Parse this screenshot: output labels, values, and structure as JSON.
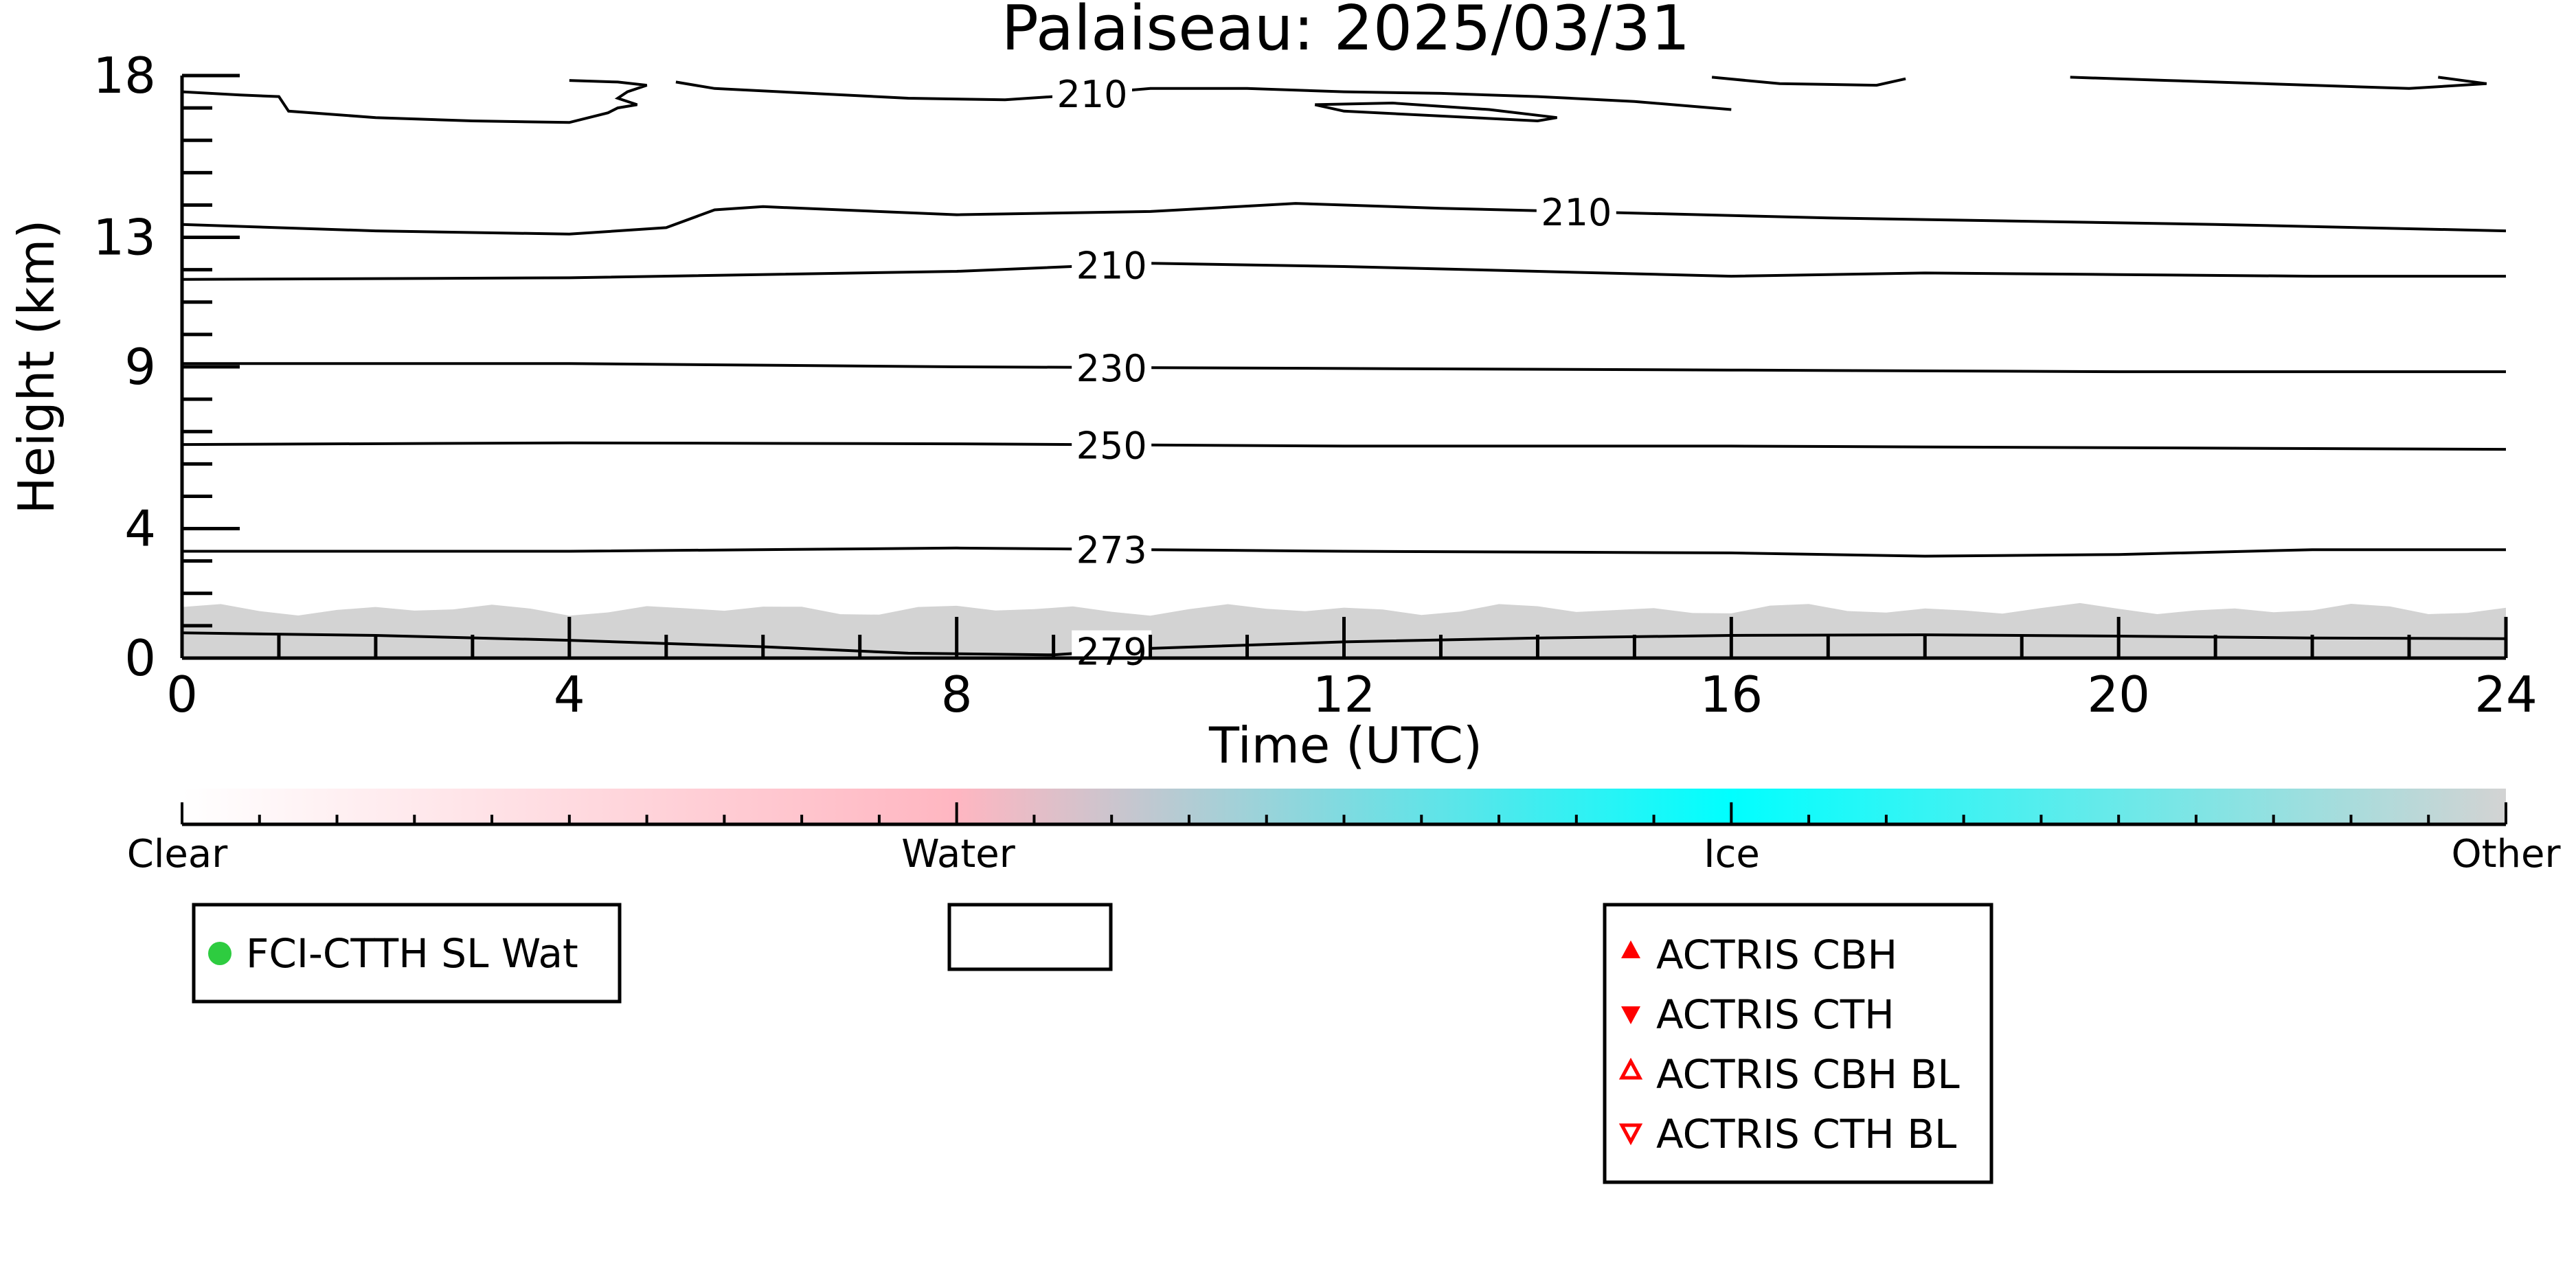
{
  "chart_data": {
    "type": "heatmap",
    "title": "Palaiseau: 2025/03/31",
    "xlabel": "Time (UTC)",
    "ylabel": "Height (km)",
    "xlim": [
      0,
      24
    ],
    "ylim": [
      0,
      18
    ],
    "x_ticks": [
      0,
      4,
      8,
      12,
      16,
      20,
      24
    ],
    "x_tick_labels": [
      "0",
      "4",
      "8",
      "12",
      "16",
      "20",
      "24"
    ],
    "y_ticks": [
      0,
      4,
      9,
      13,
      18
    ],
    "y_tick_labels": [
      "0",
      "4",
      "9",
      "13",
      "18"
    ],
    "background_class": {
      "name": "Other",
      "from_x": 0,
      "to_x": 24,
      "top_km_approx": 1.5
    },
    "isotherms": [
      {
        "label": "279",
        "label_x": 9.6,
        "points": [
          [
            0,
            0.78
          ],
          [
            2,
            0.7
          ],
          [
            4,
            0.55
          ],
          [
            6,
            0.35
          ],
          [
            7.5,
            0.15
          ],
          [
            9,
            0.1
          ],
          [
            10,
            0.3
          ],
          [
            12,
            0.5
          ],
          [
            14,
            0.62
          ],
          [
            16,
            0.7
          ],
          [
            18,
            0.72
          ],
          [
            20,
            0.68
          ],
          [
            22,
            0.62
          ],
          [
            24,
            0.6
          ]
        ]
      },
      {
        "label": "273",
        "label_x": 9.6,
        "points": [
          [
            0,
            3.3
          ],
          [
            4,
            3.3
          ],
          [
            8,
            3.4
          ],
          [
            10,
            3.35
          ],
          [
            12,
            3.3
          ],
          [
            16,
            3.25
          ],
          [
            18,
            3.15
          ],
          [
            20,
            3.2
          ],
          [
            22,
            3.35
          ],
          [
            24,
            3.35
          ]
        ]
      },
      {
        "label": "250",
        "label_x": 9.6,
        "points": [
          [
            0,
            6.6
          ],
          [
            4,
            6.65
          ],
          [
            8,
            6.62
          ],
          [
            12,
            6.55
          ],
          [
            16,
            6.55
          ],
          [
            20,
            6.5
          ],
          [
            24,
            6.45
          ]
        ]
      },
      {
        "label": "230",
        "label_x": 9.6,
        "points": [
          [
            0,
            9.1
          ],
          [
            4,
            9.1
          ],
          [
            8,
            9.0
          ],
          [
            12,
            8.95
          ],
          [
            16,
            8.9
          ],
          [
            20,
            8.85
          ],
          [
            24,
            8.85
          ]
        ]
      },
      {
        "label": "210",
        "label_x": 9.6,
        "points": [
          [
            0,
            11.7
          ],
          [
            4,
            11.75
          ],
          [
            8,
            11.95
          ],
          [
            10,
            12.2
          ],
          [
            12,
            12.1
          ],
          [
            14,
            11.95
          ],
          [
            16,
            11.8
          ],
          [
            18,
            11.9
          ],
          [
            20,
            11.85
          ],
          [
            22,
            11.8
          ],
          [
            24,
            11.8
          ]
        ]
      },
      {
        "label": "210",
        "label_x": 14.4,
        "points": [
          [
            0,
            13.4
          ],
          [
            2,
            13.2
          ],
          [
            4,
            13.1
          ],
          [
            5,
            13.3
          ],
          [
            5.5,
            13.85
          ],
          [
            6,
            13.95
          ],
          [
            8,
            13.7
          ],
          [
            10,
            13.8
          ],
          [
            11.5,
            14.05
          ],
          [
            13,
            13.9
          ],
          [
            15,
            13.75
          ],
          [
            17,
            13.6
          ],
          [
            19,
            13.5
          ],
          [
            21,
            13.4
          ],
          [
            24,
            13.2
          ]
        ]
      },
      {
        "label": "210",
        "label_x": 9.4,
        "points": [
          [
            5.1,
            17.8
          ],
          [
            5.5,
            17.6
          ],
          [
            6.5,
            17.45
          ],
          [
            7.5,
            17.3
          ],
          [
            8.5,
            17.25
          ],
          [
            9,
            17.35
          ],
          [
            10,
            17.6
          ],
          [
            11,
            17.6
          ],
          [
            12,
            17.5
          ],
          [
            13,
            17.45
          ],
          [
            14,
            17.35
          ],
          [
            15,
            17.2
          ],
          [
            16,
            16.95
          ]
        ]
      },
      {
        "label": "",
        "label_x": null,
        "points": [
          [
            0,
            17.5
          ],
          [
            0.6,
            17.4
          ],
          [
            1,
            17.35
          ],
          [
            1.1,
            16.9
          ],
          [
            2,
            16.7
          ],
          [
            3,
            16.6
          ],
          [
            4,
            16.55
          ],
          [
            4.4,
            16.85
          ],
          [
            4.5,
            17.0
          ],
          [
            4.7,
            17.1
          ],
          [
            4.5,
            17.3
          ],
          [
            4.6,
            17.5
          ],
          [
            4.8,
            17.7
          ],
          [
            4.5,
            17.8
          ],
          [
            4.0,
            17.85
          ]
        ]
      },
      {
        "label": "",
        "label_x": null,
        "points": [
          [
            11.7,
            17.1
          ],
          [
            12,
            16.9
          ],
          [
            13,
            16.75
          ],
          [
            14,
            16.6
          ],
          [
            14.2,
            16.7
          ],
          [
            13.5,
            16.95
          ],
          [
            12.5,
            17.15
          ],
          [
            11.7,
            17.1
          ]
        ]
      },
      {
        "label": "",
        "label_x": null,
        "points": [
          [
            15.8,
            17.95
          ],
          [
            16.5,
            17.75
          ],
          [
            17.5,
            17.7
          ],
          [
            17.8,
            17.9
          ]
        ]
      },
      {
        "label": "",
        "label_x": null,
        "points": [
          [
            19.5,
            17.95
          ],
          [
            20.5,
            17.85
          ],
          [
            22,
            17.7
          ],
          [
            23,
            17.6
          ],
          [
            23.8,
            17.75
          ],
          [
            23.3,
            17.95
          ]
        ]
      }
    ],
    "colorbar": {
      "stops": [
        "#ffffff",
        "#ffb6c1",
        "#00ffff",
        "#d3d3d3"
      ],
      "labels": [
        "Clear",
        "Water",
        "Ice",
        "Other"
      ]
    },
    "legends": [
      {
        "entries": [
          {
            "marker": "filled-circle",
            "color": "#2ecc40",
            "label": "FCI-CTTH SL Wat"
          }
        ]
      },
      {
        "entries": []
      },
      {
        "entries": [
          {
            "marker": "filled-triangle-up",
            "color": "#ff0000",
            "label": "ACTRIS CBH"
          },
          {
            "marker": "filled-triangle-down",
            "color": "#ff0000",
            "label": "ACTRIS CTH"
          },
          {
            "marker": "open-triangle-up",
            "color": "#ff0000",
            "label": "ACTRIS CBH BL"
          },
          {
            "marker": "open-triangle-down",
            "color": "#ff0000",
            "label": "ACTRIS CTH BL"
          }
        ]
      }
    ]
  }
}
